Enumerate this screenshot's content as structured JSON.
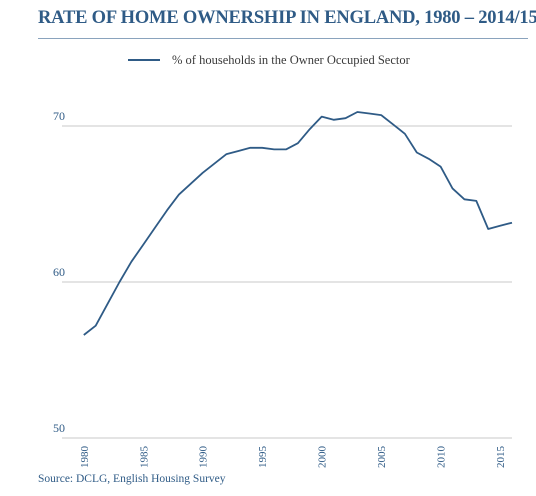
{
  "title": "RATE OF HOME OWNERSHIP IN ENGLAND, 1980 – 2014/15",
  "source": "Source: DCLG, English Housing Survey",
  "colors": {
    "accent": "#2f5b86",
    "line": "#2f5b86",
    "grid": "#c9c9c9"
  },
  "chart_data": {
    "type": "line",
    "title": "RATE OF HOME OWNERSHIP IN ENGLAND, 1980 – 2014/15",
    "xlabel": "",
    "ylabel": "",
    "xlim": [
      1978,
      2016
    ],
    "ylim": [
      50,
      73
    ],
    "yticks": [
      50,
      60,
      70
    ],
    "ytick_labels": [
      "50",
      "60",
      "70"
    ],
    "xticks": [
      1980,
      1985,
      1990,
      1995,
      2000,
      2005,
      2010,
      2015
    ],
    "xtick_labels": [
      "1980",
      "1985",
      "1990",
      "1995",
      "2000",
      "2005",
      "2010",
      "2015"
    ],
    "grid": true,
    "legend_position": "top",
    "x": [
      1980,
      1981,
      1982,
      1983,
      1984,
      1985,
      1986,
      1987,
      1988,
      1989,
      1990,
      1991,
      1992,
      1993,
      1994,
      1995,
      1996,
      1997,
      1998,
      1999,
      2000,
      2001,
      2002,
      2003,
      2004,
      2005,
      2006,
      2007,
      2008,
      2009,
      2010,
      2011,
      2012,
      2013,
      2014,
      2015,
      2016
    ],
    "series": [
      {
        "name": "% of households in the Owner Occupied Sector",
        "values": [
          56.6,
          57.2,
          58.6,
          60.0,
          61.3,
          62.4,
          63.5,
          64.6,
          65.6,
          66.3,
          67.0,
          67.6,
          68.2,
          68.4,
          68.6,
          68.6,
          68.5,
          68.5,
          68.9,
          69.8,
          70.6,
          70.4,
          70.5,
          70.9,
          70.8,
          70.7,
          70.1,
          69.5,
          68.3,
          67.9,
          67.4,
          66.0,
          65.3,
          65.2,
          63.4,
          63.6,
          63.8
        ]
      }
    ]
  }
}
